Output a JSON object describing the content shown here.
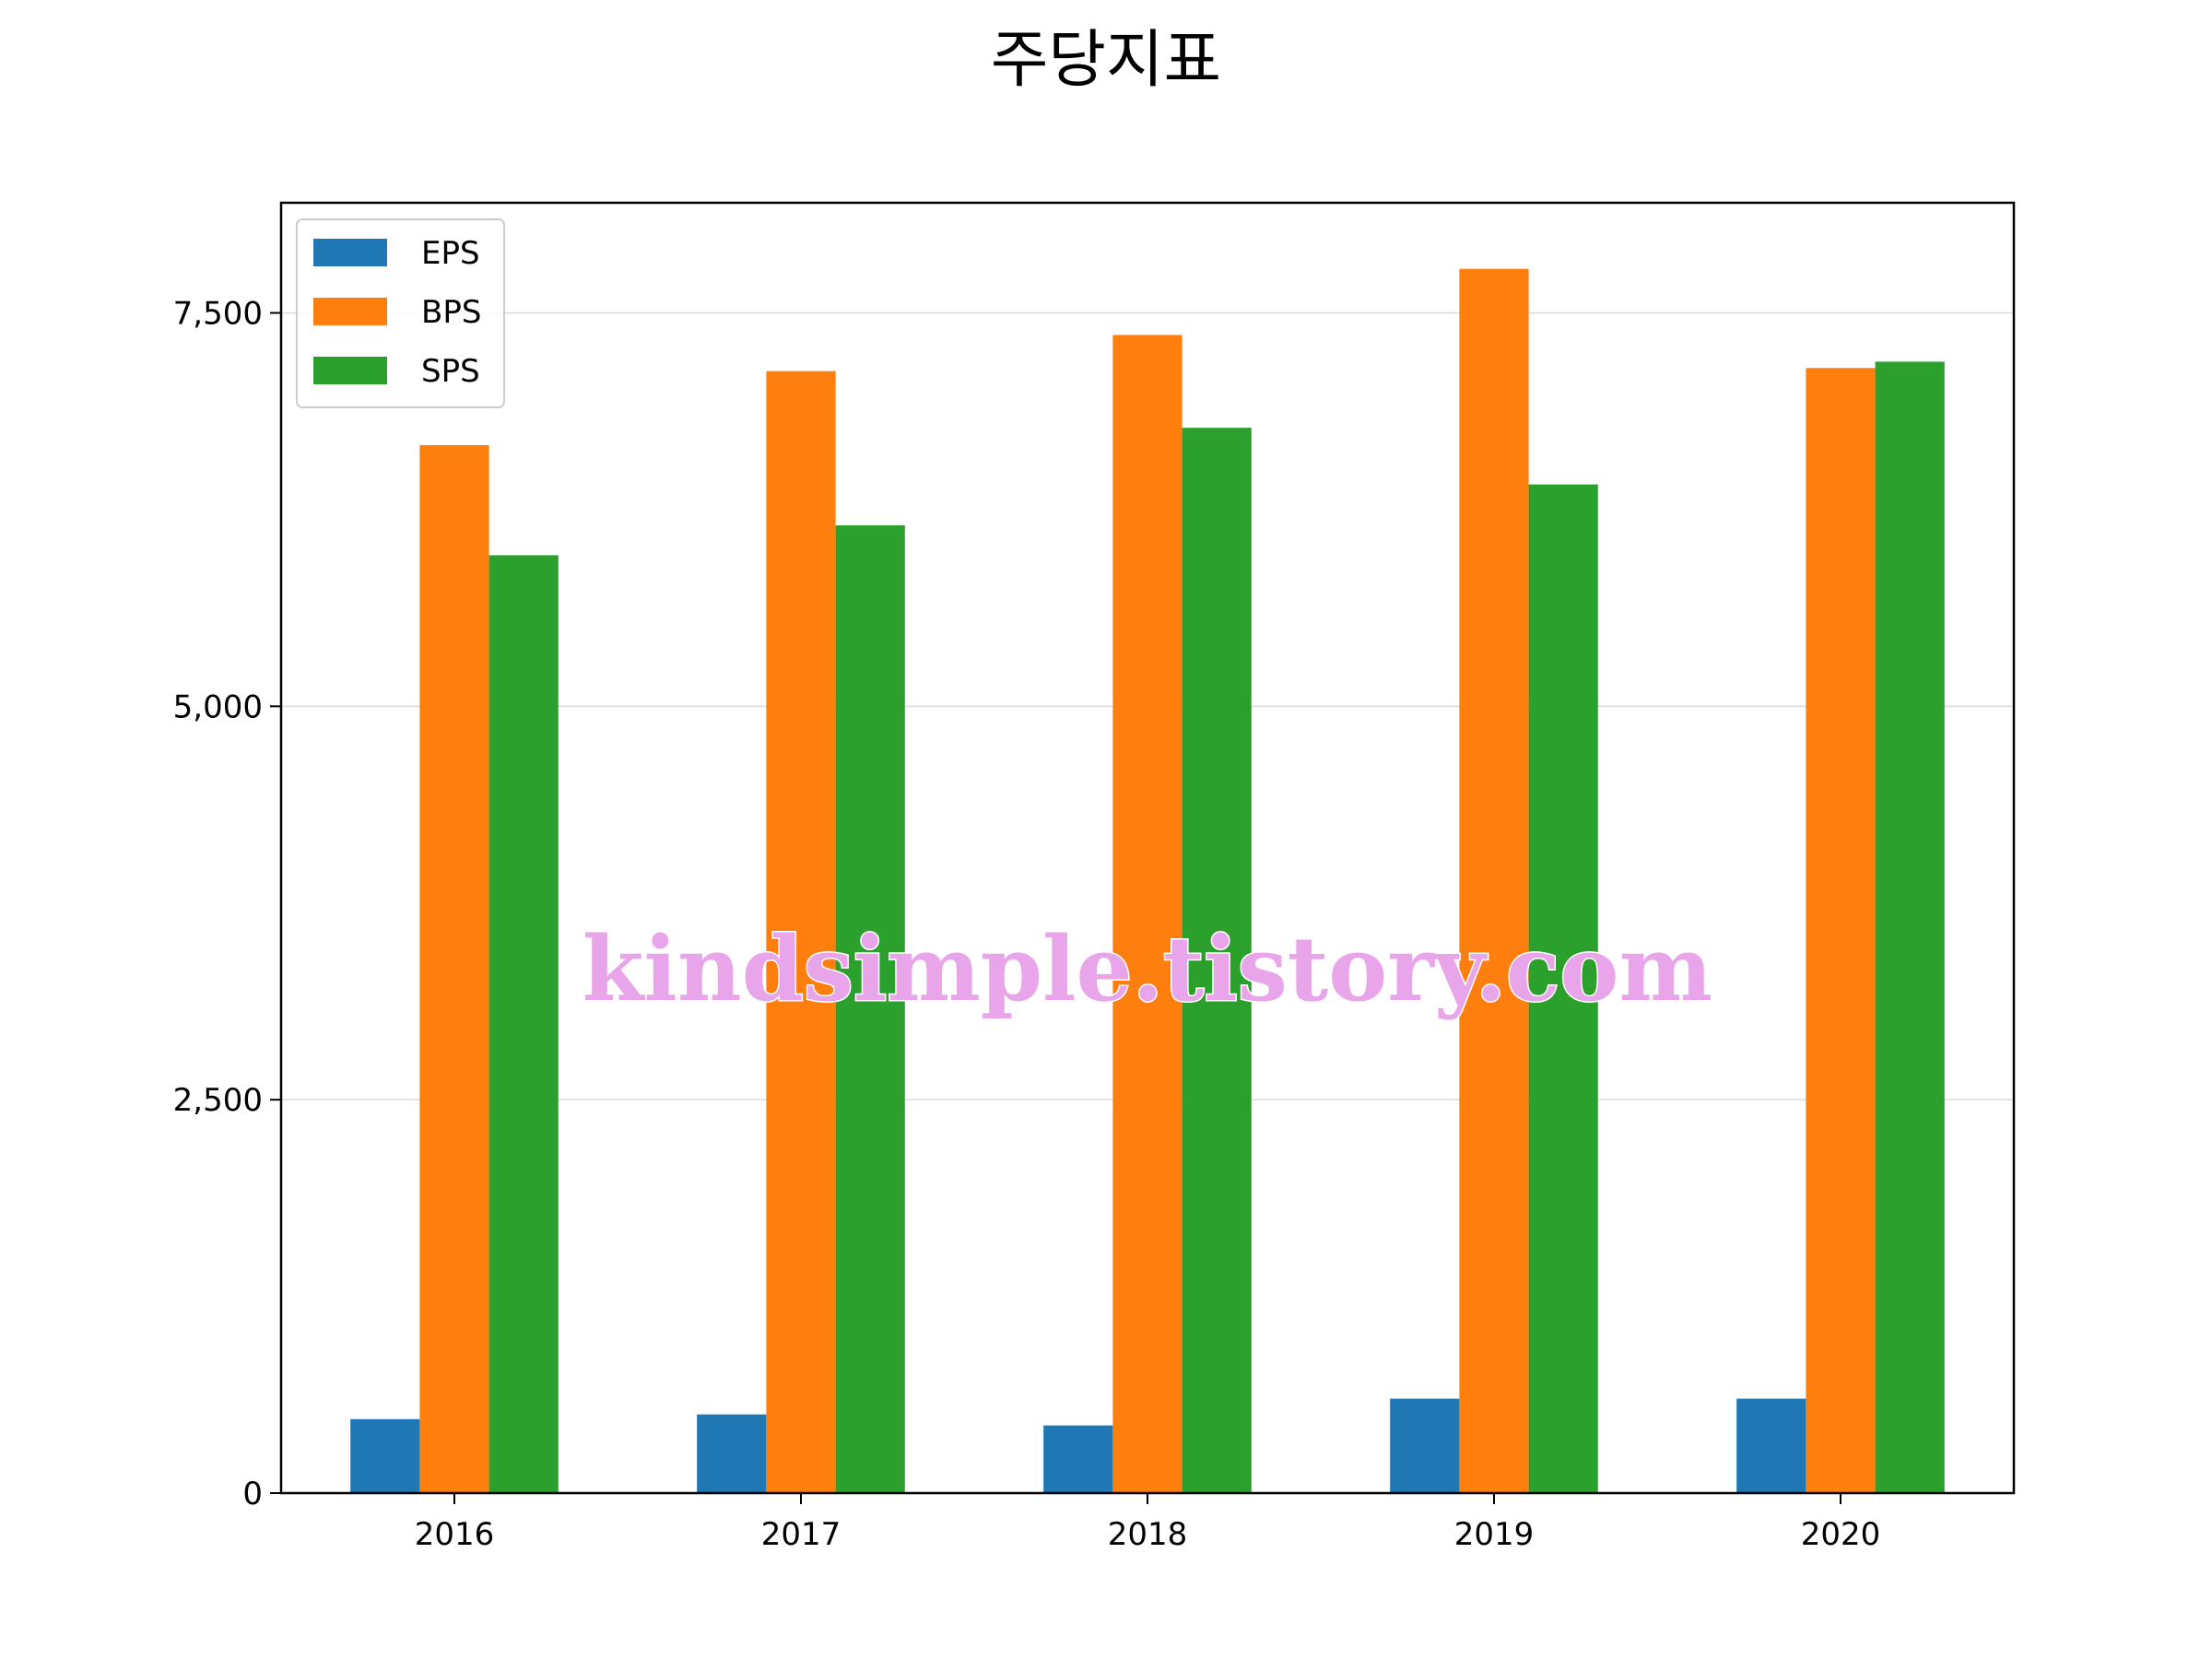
{
  "chart_data": {
    "type": "bar",
    "title": "주당지표",
    "xlabel": "",
    "ylabel": "",
    "categories": [
      "2016",
      "2017",
      "2018",
      "2019",
      "2020"
    ],
    "series": [
      {
        "name": "EPS",
        "color": "#1f77b4",
        "values": [
          470,
          500,
          430,
          600,
          600
        ]
      },
      {
        "name": "BPS",
        "color": "#ff7f0e",
        "values": [
          6660,
          7130,
          7360,
          7780,
          7150
        ]
      },
      {
        "name": "SPS",
        "color": "#2ca02c",
        "values": [
          5960,
          6150,
          6770,
          6410,
          7190
        ]
      }
    ],
    "ylim": [
      0,
      8200
    ],
    "yticks": [
      0,
      2500,
      5000,
      7500
    ],
    "ytick_labels": [
      "0",
      "2,500",
      "5,000",
      "7,500"
    ],
    "grid": "y",
    "grid_color": "#d9d9d9",
    "legend_placement": "top-left",
    "watermark": "kindsimple.tistory.com",
    "watermark_color": "#e9a5ea"
  }
}
